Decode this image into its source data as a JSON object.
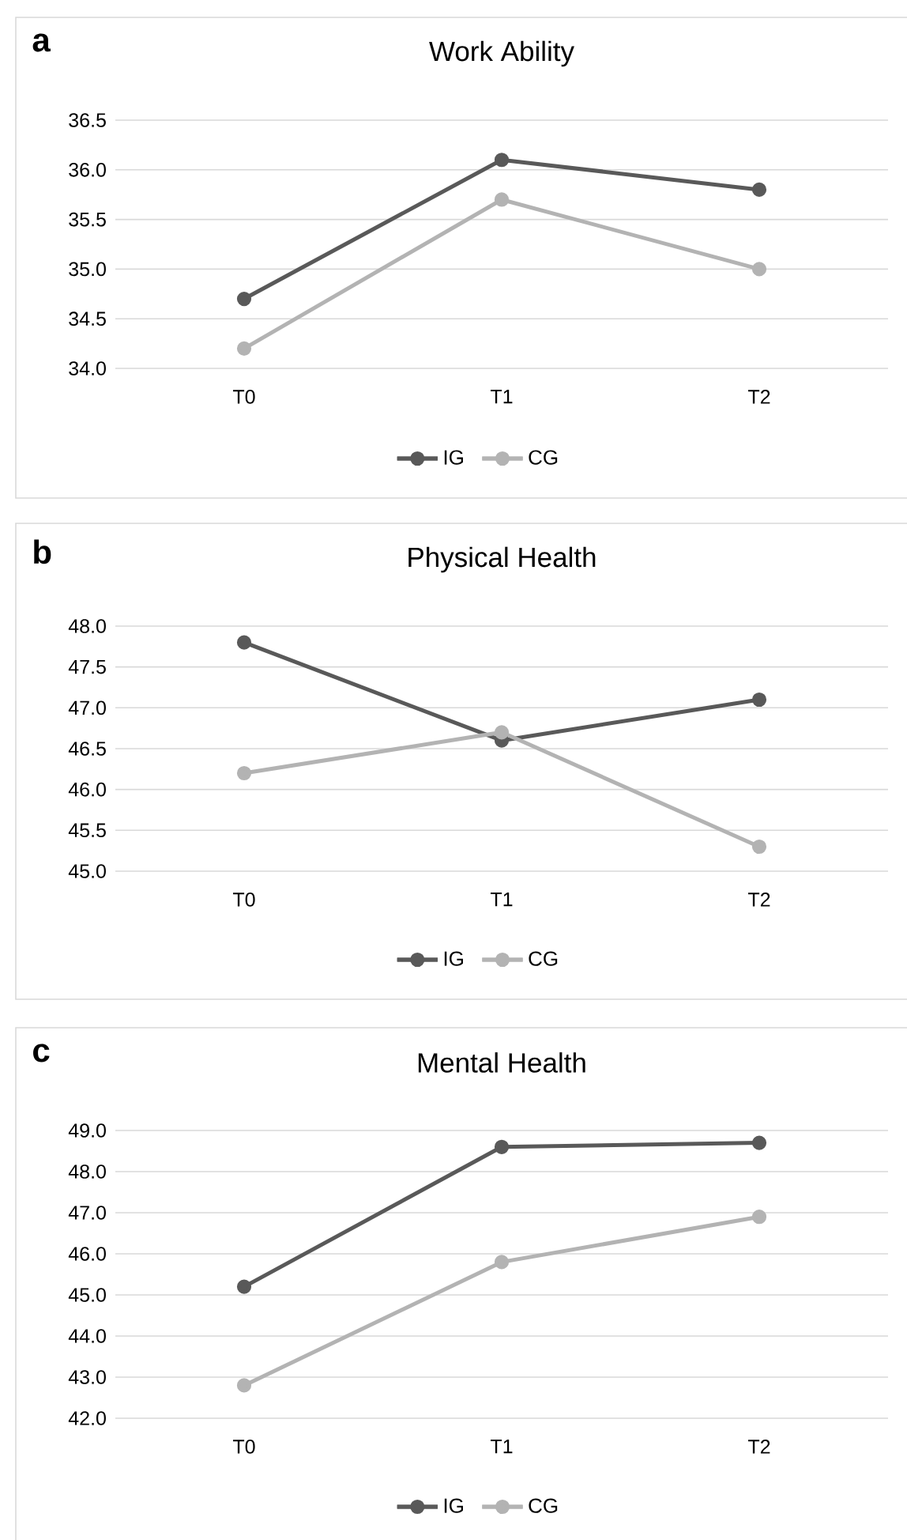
{
  "chart_data": [
    {
      "type": "line",
      "title": "Work Ability",
      "annotations": [
        "a"
      ],
      "categories": [
        "T0",
        "T1",
        "T2"
      ],
      "series": [
        {
          "name": "IG",
          "color": "#595959",
          "values": [
            34.7,
            36.1,
            35.8
          ]
        },
        {
          "name": "CG",
          "color": "#b3b3b3",
          "values": [
            34.2,
            35.7,
            35.0
          ]
        }
      ],
      "ylim": [
        34.0,
        36.5
      ],
      "yticks": [
        {
          "value": 34.0,
          "label": "34.0"
        },
        34.5,
        {
          "value": 35.0,
          "label": "35.0"
        },
        35.5,
        {
          "value": 36.0,
          "label": "36.0"
        },
        36.5
      ],
      "grid": "y",
      "legend": "bottom",
      "marker": "circle",
      "line_style": "solid"
    },
    {
      "type": "line",
      "title": "Physical Health",
      "annotations": [
        "b"
      ],
      "categories": [
        "T0",
        "T1",
        "T2"
      ],
      "series": [
        {
          "name": "IG",
          "color": "#595959",
          "values": [
            47.8,
            46.6,
            47.1
          ]
        },
        {
          "name": "CG",
          "color": "#b3b3b3",
          "values": [
            46.2,
            46.7,
            45.3
          ]
        }
      ],
      "ylim": [
        45.0,
        48.0
      ],
      "yticks": [
        {
          "value": 45.0,
          "label": "45.0"
        },
        45.5,
        {
          "value": 46.0,
          "label": "46.0"
        },
        46.5,
        {
          "value": 47.0,
          "label": "47.0"
        },
        47.5,
        {
          "value": 48.0,
          "label": "48.0"
        }
      ],
      "grid": "y",
      "legend": "bottom",
      "marker": "circle",
      "line_style": "solid"
    },
    {
      "type": "line",
      "title": "Mental Health",
      "annotations": [
        "c"
      ],
      "categories": [
        "T0",
        "T1",
        "T2"
      ],
      "series": [
        {
          "name": "IG",
          "color": "#595959",
          "values": [
            45.2,
            48.6,
            48.7
          ]
        },
        {
          "name": "CG",
          "color": "#b3b3b3",
          "values": [
            42.8,
            45.8,
            46.9
          ]
        }
      ],
      "ylim": [
        42.0,
        49.0
      ],
      "yticks": [
        {
          "value": 42.0,
          "label": "42.0"
        },
        {
          "value": 43.0,
          "label": "43.0"
        },
        {
          "value": 44.0,
          "label": "44.0"
        },
        {
          "value": 45.0,
          "label": "45.0"
        },
        {
          "value": 46.0,
          "label": "46.0"
        },
        {
          "value": 47.0,
          "label": "47.0"
        },
        {
          "value": 48.0,
          "label": "48.0"
        },
        {
          "value": 49.0,
          "label": "49.0"
        }
      ],
      "grid": "y",
      "legend": "bottom",
      "marker": "circle",
      "line_style": "solid"
    }
  ]
}
